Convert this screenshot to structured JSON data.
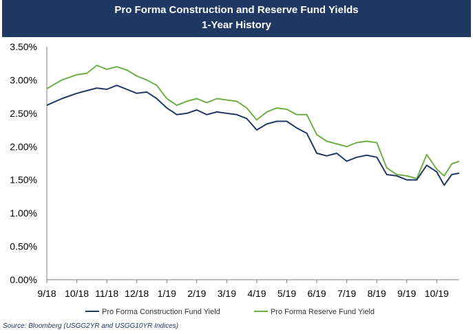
{
  "header": {
    "title": "Pro Forma Construction and Reserve Fund Yields",
    "subtitle": "1-Year History"
  },
  "source": "Source: Bloomberg (USGG2YR and USGG10YR Indices)",
  "colors": {
    "banner": "#1f3864",
    "construction": "#1f3864",
    "reserve": "#70ad47"
  },
  "chart_data": {
    "type": "line",
    "title": "Pro Forma Construction and Reserve Fund Yields",
    "subtitle": "1-Year History",
    "ylim": [
      0,
      3.5
    ],
    "y_ticks": [
      "0.00%",
      "0.50%",
      "1.00%",
      "1.50%",
      "2.00%",
      "2.50%",
      "3.00%",
      "3.50%"
    ],
    "x_ticks": [
      "9/18",
      "10/18",
      "11/18",
      "12/18",
      "1/19",
      "2/19",
      "3/19",
      "4/19",
      "5/19",
      "6/19",
      "7/19",
      "8/19",
      "9/19",
      "10/19"
    ],
    "grid": false,
    "legend": "bottom",
    "x": [
      "9/18",
      "9/18",
      "10/18",
      "10/18",
      "10/18",
      "11/18",
      "11/18",
      "11/18",
      "12/18",
      "12/18",
      "12/18",
      "1/19",
      "1/19",
      "1/19",
      "2/19",
      "2/19",
      "2/19",
      "3/19",
      "3/19",
      "3/19",
      "4/19",
      "4/19",
      "4/19",
      "5/19",
      "5/19",
      "5/19",
      "6/19",
      "6/19",
      "6/19",
      "7/19",
      "7/19",
      "7/19",
      "8/19",
      "8/19",
      "8/19",
      "9/19",
      "9/19",
      "9/19",
      "10/19",
      "10/19",
      "10/19",
      "10/19"
    ],
    "series": [
      {
        "name": "Pro Forma Construction Fund Yield",
        "values": [
          2.62,
          2.72,
          2.8,
          2.84,
          2.88,
          2.86,
          2.92,
          2.86,
          2.8,
          2.82,
          2.72,
          2.58,
          2.48,
          2.5,
          2.55,
          2.48,
          2.52,
          2.5,
          2.48,
          2.42,
          2.25,
          2.34,
          2.38,
          2.38,
          2.28,
          2.2,
          1.9,
          1.86,
          1.9,
          1.78,
          1.84,
          1.87,
          1.84,
          1.58,
          1.56,
          1.5,
          1.5,
          1.72,
          1.62,
          1.42,
          1.58,
          1.6
        ]
      },
      {
        "name": "Pro Forma Reserve Fund Yield",
        "values": [
          2.87,
          3.0,
          3.08,
          3.1,
          3.22,
          3.16,
          3.2,
          3.15,
          3.06,
          3.0,
          2.92,
          2.72,
          2.62,
          2.68,
          2.72,
          2.66,
          2.72,
          2.7,
          2.68,
          2.58,
          2.4,
          2.52,
          2.58,
          2.56,
          2.48,
          2.48,
          2.18,
          2.08,
          2.04,
          2.0,
          2.06,
          2.08,
          2.06,
          1.68,
          1.58,
          1.56,
          1.52,
          1.88,
          1.66,
          1.56,
          1.74,
          1.78
        ]
      }
    ]
  }
}
